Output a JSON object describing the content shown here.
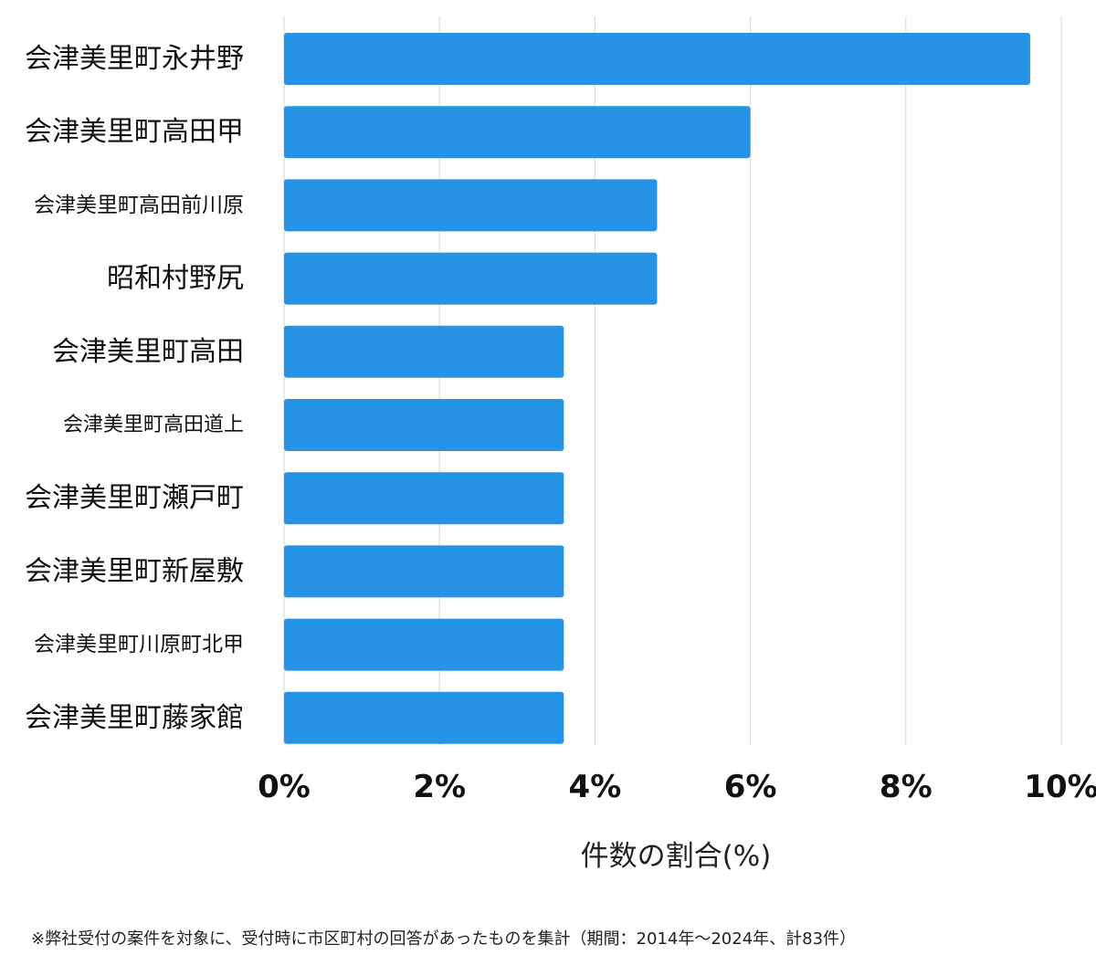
{
  "chart_data": {
    "type": "bar",
    "orientation": "horizontal",
    "categories": [
      "会津美里町永井野",
      "会津美里町高田甲",
      "会津美里町高田前川原",
      "昭和村野尻",
      "会津美里町高田",
      "会津美里町高田道上",
      "会津美里町瀬戸町",
      "会津美里町新屋敷",
      "会津美里町川原町北甲",
      "会津美里町藤家館"
    ],
    "values": [
      9.6,
      6.0,
      4.8,
      4.8,
      3.6,
      3.6,
      3.6,
      3.6,
      3.6,
      3.6
    ],
    "xlim": [
      0,
      10
    ],
    "x_ticks": [
      0,
      2,
      4,
      6,
      8,
      10
    ],
    "x_tick_labels": [
      "0%",
      "2%",
      "4%",
      "6%",
      "8%",
      "10%"
    ],
    "xlabel": "件数の割合(%)",
    "grid": true,
    "bar_color": "#2793e6",
    "grid_color": "#dddddd"
  },
  "footnote": "※弊社受付の案件を対象に、受付時に市区町村の回答があったものを集計（期間：2014年〜2024年、計83件）"
}
